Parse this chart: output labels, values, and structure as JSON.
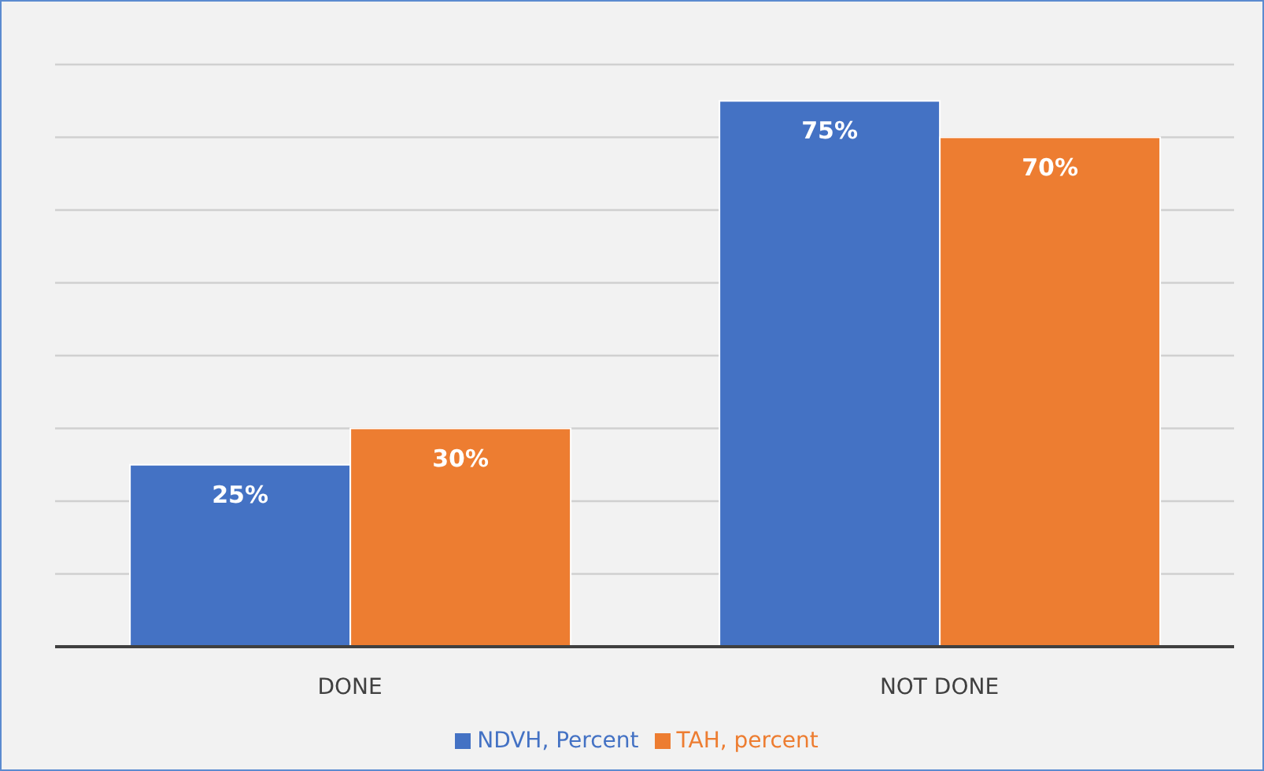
{
  "chart_data": {
    "type": "bar",
    "categories": [
      "DONE",
      "NOT DONE"
    ],
    "series": [
      {
        "name": "NDVH, Percent",
        "color": "#4472c4",
        "values": [
          25,
          75
        ],
        "value_labels": [
          "25%",
          "75%"
        ]
      },
      {
        "name": "TAH, percent",
        "color": "#ed7d31",
        "values": [
          30,
          70
        ],
        "value_labels": [
          "30%",
          "70%"
        ]
      }
    ],
    "ylim": [
      0,
      80
    ],
    "yticks": [
      {
        "value": 0,
        "label": null
      },
      {
        "value": 10,
        "label": null
      },
      {
        "value": 20,
        "label": null
      },
      {
        "value": 30,
        "label": null
      },
      {
        "value": 40,
        "label": null
      },
      {
        "value": 50,
        "label": null
      },
      {
        "value": 60,
        "label": null
      },
      {
        "value": 70,
        "label": null
      },
      {
        "value": 80,
        "label": null
      }
    ],
    "grid": "y",
    "legend": "bottom",
    "tick_labels": "x"
  }
}
